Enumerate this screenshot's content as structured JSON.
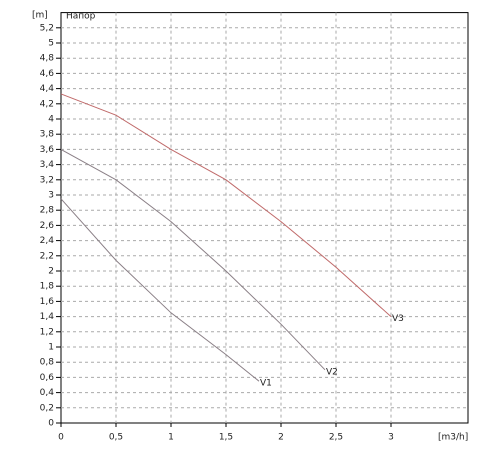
{
  "chart_data": {
    "type": "line",
    "title": "Напор",
    "x_label": "[m3/h]",
    "y_label": "[m]",
    "xlim": [
      0,
      3.7
    ],
    "ylim": [
      0,
      5.4
    ],
    "xticks": [
      0,
      {
        "value": 0.5,
        "label": "0,5"
      },
      1,
      {
        "value": 1.5,
        "label": "1,5"
      },
      2,
      {
        "value": 2.5,
        "label": "2,5"
      },
      3
    ],
    "yticks": [
      0,
      {
        "value": 0.2,
        "label": "0,2"
      },
      {
        "value": 0.4,
        "label": "0,4"
      },
      {
        "value": 0.6,
        "label": "0,6"
      },
      {
        "value": 0.8,
        "label": "0,8"
      },
      1,
      {
        "value": 1.2,
        "label": "1,2"
      },
      {
        "value": 1.4,
        "label": "1,4"
      },
      {
        "value": 1.6,
        "label": "1,6"
      },
      {
        "value": 1.8,
        "label": "1,8"
      },
      2,
      {
        "value": 2.2,
        "label": "2,2"
      },
      {
        "value": 2.4,
        "label": "2,4"
      },
      {
        "value": 2.6,
        "label": "2,6"
      },
      {
        "value": 2.8,
        "label": "2,8"
      },
      3,
      {
        "value": 3.2,
        "label": "3,2"
      },
      {
        "value": 3.4,
        "label": "3,4"
      },
      {
        "value": 3.6,
        "label": "3,6"
      },
      {
        "value": 3.8,
        "label": "3,8"
      },
      4,
      {
        "value": 4.2,
        "label": "4,2"
      },
      {
        "value": 4.4,
        "label": "4,4"
      },
      {
        "value": 4.6,
        "label": "4,6"
      },
      {
        "value": 4.8,
        "label": "4,8"
      },
      5,
      {
        "value": 5.2,
        "label": "5,2"
      }
    ],
    "grid": true,
    "series": [
      {
        "name": "V1",
        "color": "#8a7f86",
        "x": [
          0,
          0.5,
          1,
          1.5,
          1.8
        ],
        "values": [
          2.95,
          2.14,
          1.45,
          0.9,
          0.55
        ]
      },
      {
        "name": "V2",
        "color": "#8a7f86",
        "x": [
          0,
          0.5,
          1,
          1.5,
          2,
          2.4
        ],
        "values": [
          3.6,
          3.2,
          2.65,
          2.0,
          1.3,
          0.7
        ]
      },
      {
        "name": "V3",
        "color": "#c06a6a",
        "x": [
          0,
          0.5,
          1,
          1.5,
          2,
          2.5,
          3
        ],
        "values": [
          4.33,
          4.05,
          3.6,
          3.2,
          2.65,
          2.05,
          1.4
        ]
      }
    ]
  }
}
